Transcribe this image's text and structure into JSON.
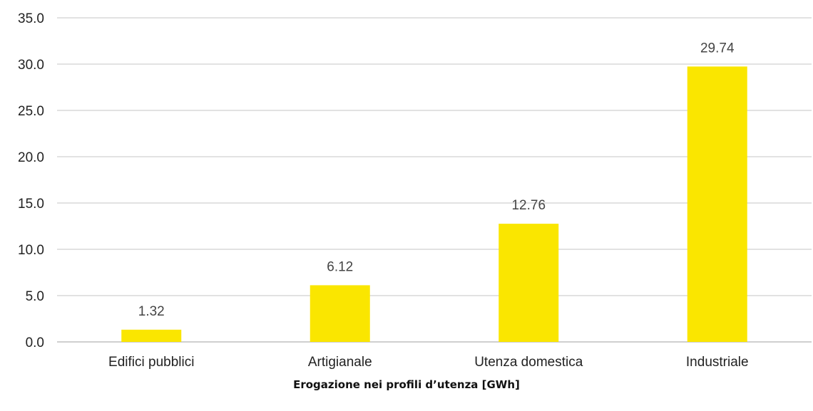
{
  "caption": "Erogazione nei profili d’utenza [GWh]",
  "colors": {
    "bar": "#FAE600",
    "grid": "#D9D9D9",
    "axis": "#BFBFBF"
  },
  "chart_data": {
    "type": "bar",
    "categories": [
      "Edifici pubblici",
      "Artigianale",
      "Utenza domestica",
      "Industriale"
    ],
    "values": [
      1.32,
      6.12,
      12.76,
      29.74
    ],
    "data_labels": [
      "1.32",
      "6.12",
      "12.76",
      "29.74"
    ],
    "y_ticks": [
      "0.0",
      "5.0",
      "10.0",
      "15.0",
      "20.0",
      "25.0",
      "30.0",
      "35.0"
    ],
    "ylim": [
      0,
      35
    ],
    "grid": true,
    "legend": "none",
    "title": "",
    "xlabel": "Erogazione nei profili d’utenza [GWh]",
    "ylabel": ""
  }
}
